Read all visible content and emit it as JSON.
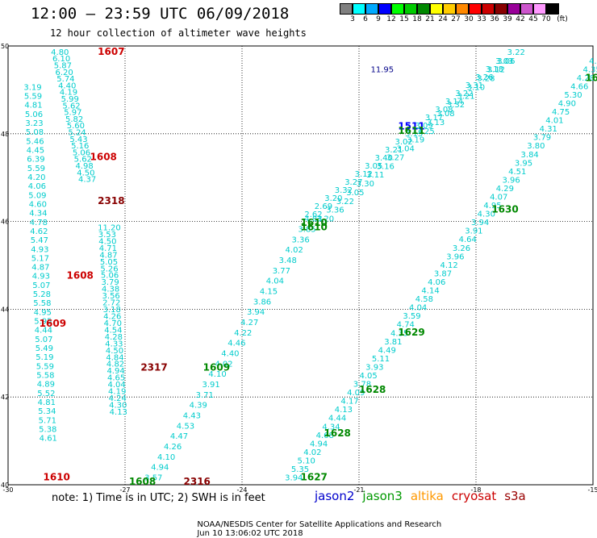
{
  "header": {
    "title": "12:00 – 23:59 UTC 06/09/2018",
    "subtitle": "12 hour collection of altimeter wave heights"
  },
  "legend": {
    "unit": "(ft)",
    "bins": [
      {
        "label": "3",
        "color": "#808080"
      },
      {
        "label": "6",
        "color": "#00ffff"
      },
      {
        "label": "9",
        "color": "#00aaff"
      },
      {
        "label": "12",
        "color": "#0000ff"
      },
      {
        "label": "15",
        "color": "#00ff00"
      },
      {
        "label": "18",
        "color": "#00cc00"
      },
      {
        "label": "21",
        "color": "#008800"
      },
      {
        "label": "24",
        "color": "#ffff00"
      },
      {
        "label": "27",
        "color": "#ffcc00"
      },
      {
        "label": "30",
        "color": "#ff8800"
      },
      {
        "label": "33",
        "color": "#ff0000"
      },
      {
        "label": "36",
        "color": "#cc0000"
      },
      {
        "label": "39",
        "color": "#880000"
      },
      {
        "label": "42",
        "color": "#990099"
      },
      {
        "label": "45",
        "color": "#cc55cc"
      },
      {
        "label": "70",
        "color": "#ff99ff"
      },
      {
        "label": "",
        "color": "#000000"
      }
    ]
  },
  "map": {
    "lon_range": [
      -30,
      -15
    ],
    "lat_range": [
      40,
      50
    ],
    "lon_ticks": [
      {
        "value": -30,
        "label": "-30"
      },
      {
        "value": -27,
        "label": "-27"
      },
      {
        "value": -24,
        "label": "-24"
      },
      {
        "value": -21,
        "label": "-21"
      },
      {
        "value": -18,
        "label": "-18"
      },
      {
        "value": -15,
        "label": "-15"
      }
    ],
    "lat_ticks": [
      {
        "value": 50,
        "label": "50"
      },
      {
        "value": 48,
        "label": "48"
      },
      {
        "value": 46,
        "label": "46"
      },
      {
        "value": 44,
        "label": "44"
      },
      {
        "value": 42,
        "label": "42"
      },
      {
        "value": 40,
        "label": "40"
      }
    ],
    "grid": "dotted"
  },
  "chart_data": {
    "type": "scatter",
    "x_label": "longitude",
    "y_label": "latitude",
    "xlim": [
      -30,
      -15
    ],
    "ylim": [
      40,
      50
    ],
    "passes": [
      {
        "label": "1607",
        "lon": -27.7,
        "lat": 49.8,
        "color": "#cc0000"
      },
      {
        "label": "1608",
        "lon": -27.9,
        "lat": 47.4,
        "color": "#cc0000"
      },
      {
        "label": "2318",
        "lon": -27.7,
        "lat": 46.4,
        "color": "#880000"
      },
      {
        "label": "1608",
        "lon": -28.5,
        "lat": 44.7,
        "color": "#cc0000"
      },
      {
        "label": "1609",
        "lon": -29.2,
        "lat": 43.6,
        "color": "#cc0000"
      },
      {
        "label": "2317",
        "lon": -26.6,
        "lat": 42.6,
        "color": "#880000"
      },
      {
        "label": "1609",
        "lon": -25.0,
        "lat": 42.6,
        "color": "#008800"
      },
      {
        "label": "1610",
        "lon": -29.1,
        "lat": 40.1,
        "color": "#cc0000"
      },
      {
        "label": "1608",
        "lon": -26.9,
        "lat": 40.0,
        "color": "#008800"
      },
      {
        "label": "2316",
        "lon": -25.5,
        "lat": 40.0,
        "color": "#880000"
      },
      {
        "label": "1511",
        "lon": -20.0,
        "lat": 48.1,
        "color": "#0000ff"
      },
      {
        "label": "1611",
        "lon": -20.0,
        "lat": 48.0,
        "color": "#008800"
      },
      {
        "label": "1610",
        "lon": -22.5,
        "lat": 45.9,
        "color": "#008800"
      },
      {
        "label": "1610",
        "lon": -22.5,
        "lat": 45.8,
        "color": "#008800"
      },
      {
        "label": "1630",
        "lon": -17.6,
        "lat": 46.2,
        "color": "#008800"
      },
      {
        "label": "1629",
        "lon": -20.0,
        "lat": 43.4,
        "color": "#008800"
      },
      {
        "label": "1628",
        "lon": -21.0,
        "lat": 42.1,
        "color": "#008800"
      },
      {
        "label": "1628",
        "lon": -21.9,
        "lat": 41.1,
        "color": "#008800"
      },
      {
        "label": "1627",
        "lon": -22.5,
        "lat": 40.1,
        "color": "#008800"
      },
      {
        "label": "16",
        "lon": -15.2,
        "lat": 49.2,
        "color": "#008800"
      }
    ],
    "tracks": [
      {
        "name": "cryosat_s3a_track_1",
        "color": "#00cccc",
        "start": [
          -28.9,
          49.8
        ],
        "end": [
          -28.2,
          46.9
        ],
        "values": [
          "4.80",
          "6.10",
          "5.87",
          "6.20",
          "5.74",
          "4.40",
          "4.19",
          "5.99",
          "5.62",
          "5.97",
          "5.82",
          "5.60",
          "5.24",
          "5.43",
          "5.16",
          "5.06",
          "5.62",
          "4.98",
          "4.50",
          "4.37"
        ]
      },
      {
        "name": "cryosat_s3a_track_2",
        "color": "#00cccc",
        "start": [
          -29.6,
          49.0
        ],
        "end": [
          -29.2,
          41.0
        ],
        "values": [
          "3.19",
          "5.59",
          "4.81",
          "5.06",
          "3.23",
          "5.08",
          "5.46",
          "4.45",
          "6.39",
          "5.59",
          "4.20",
          "4.06",
          "5.09",
          "4.60",
          "4.34",
          "4.78",
          "4.62",
          "5.47",
          "4.93",
          "5.17",
          "4.87",
          "4.93",
          "5.07",
          "5.28",
          "5.58",
          "4.95",
          "5.95",
          "4.44",
          "5.07",
          "5.49",
          "5.19",
          "5.59",
          "5.58",
          "4.89",
          "5.52",
          "4.81",
          "5.34",
          "5.71",
          "5.38",
          "4.61"
        ]
      },
      {
        "name": "cryosat_s3a_track_3",
        "color": "#00cccc",
        "start": [
          -27.7,
          45.8
        ],
        "end": [
          -27.4,
          41.6
        ],
        "values": [
          "11.20",
          "3.53",
          "4.50",
          "4.71",
          "4.87",
          "5.05",
          "5.26",
          "5.06",
          "3.79",
          "4.38",
          "3.56",
          "2.72",
          "3.18",
          "4.26",
          "4.70",
          "4.54",
          "4.28",
          "4.33",
          "4.50",
          "4.84",
          "4.82",
          "4.94",
          "4.65",
          "4.04",
          "4.19",
          "4.24",
          "4.30",
          "4.13"
        ]
      },
      {
        "name": "jason3_track_west",
        "color": "#00cccc",
        "start": [
          -26.5,
          40.1
        ],
        "end": [
          -22.4,
          46.0
        ],
        "values": [
          "3.57",
          "4.94",
          "4.10",
          "4.26",
          "4.47",
          "4.53",
          "4.43",
          "4.39",
          "3.71",
          "3.91",
          "4.10",
          "4.02",
          "4.40",
          "4.46",
          "4.22",
          "4.27",
          "3.94",
          "3.86",
          "4.15",
          "4.04",
          "3.77",
          "3.48",
          "4.02",
          "3.36",
          "3.85",
          "4.83"
        ]
      },
      {
        "name": "jason_track_diagonal_a",
        "color": "#00cccc",
        "start": [
          -22.4,
          46.1
        ],
        "end": [
          -17.5,
          49.6
        ],
        "values": [
          "2.62",
          "2.69",
          "3.20",
          "3.32",
          "3.27",
          "3.12",
          "3.05",
          "3.40",
          "3.21",
          "3.02",
          "3.15",
          "3.09",
          "3.17",
          "3.08",
          "3.14",
          "3.22",
          "3.31",
          "3.26",
          "3.18",
          "3.03"
        ]
      },
      {
        "name": "jason_track_diagonal_b",
        "color": "#00cccc",
        "start": [
          -22.1,
          46.0
        ],
        "end": [
          -17.2,
          49.8
        ],
        "values": [
          "3.20",
          "3.36",
          "3.22",
          "3.05",
          "3.30",
          "3.11",
          "3.16",
          "3.27",
          "3.04",
          "3.19",
          "3.25",
          "3.13",
          "3.08",
          "3.32",
          "3.21",
          "3.10",
          "3.28",
          "3.12",
          "3.06",
          "3.22"
        ]
      },
      {
        "name": "jason3_track_east",
        "color": "#00cccc",
        "start": [
          -22.9,
          40.1
        ],
        "end": [
          -15.1,
          49.6
        ],
        "values": [
          "3.94",
          "5.35",
          "5.10",
          "4.02",
          "4.94",
          "4.68",
          "4.34",
          "4.44",
          "4.13",
          "4.17",
          "4.09",
          "3.78",
          "4.05",
          "3.93",
          "5.11",
          "4.49",
          "3.81",
          "4.35",
          "4.74",
          "3.59",
          "4.04",
          "4.58",
          "4.14",
          "4.06",
          "3.87",
          "4.12",
          "3.96",
          "3.26",
          "4.64",
          "3.91",
          "3.94",
          "4.30",
          "4.95",
          "4.07",
          "4.29",
          "3.96",
          "4.51",
          "3.95",
          "3.84",
          "3.80",
          "3.79",
          "4.31",
          "4.01",
          "4.75",
          "4.90",
          "5.30",
          "4.66",
          "4.28",
          "4.35",
          "4.30"
        ]
      }
    ],
    "single_values": [
      {
        "value": "11.95",
        "lon": -20.7,
        "lat": 49.4,
        "color": "#000088"
      }
    ]
  },
  "footer": {
    "note": "note: 1) Time is in UTC; 2) SWH is in feet",
    "satellites": [
      {
        "label": "jason2",
        "color": "#0000cc"
      },
      {
        "label": "jason3",
        "color": "#009900"
      },
      {
        "label": "altika",
        "color": "#ff9900"
      },
      {
        "label": "cryosat",
        "color": "#cc0000"
      },
      {
        "label": "s3a",
        "color": "#990000"
      }
    ],
    "credit": "NOAA/NESDIS Center for Satellite Applications and Research",
    "timestamp": "Jun 10 13:06:02 UTC 2018"
  }
}
